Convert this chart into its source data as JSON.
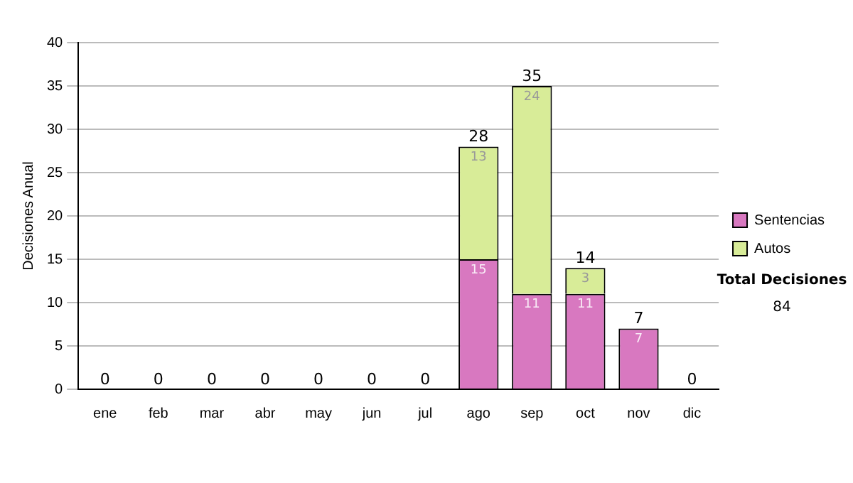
{
  "chart_data": {
    "type": "bar",
    "stacked": true,
    "ylabel": "Decisiones Anual",
    "categories": [
      "ene",
      "feb",
      "mar",
      "abr",
      "may",
      "jun",
      "jul",
      "ago",
      "sep",
      "oct",
      "nov",
      "dic"
    ],
    "series": [
      {
        "name": "Sentencias",
        "color": "#d878c0",
        "values": [
          0,
          0,
          0,
          0,
          0,
          0,
          0,
          15,
          11,
          11,
          7,
          0
        ],
        "value_labels": [
          null,
          null,
          null,
          null,
          null,
          null,
          null,
          "15",
          "11",
          "11",
          "7",
          null
        ]
      },
      {
        "name": "Autos",
        "color": "#d8ec98",
        "values": [
          0,
          0,
          0,
          0,
          0,
          0,
          0,
          13,
          24,
          3,
          0,
          0
        ],
        "value_labels": [
          null,
          null,
          null,
          null,
          null,
          null,
          null,
          "13",
          "24",
          "3",
          null,
          null
        ]
      }
    ],
    "totals": [
      "0",
      "0",
      "0",
      "0",
      "0",
      "0",
      "0",
      "28",
      "35",
      "14",
      "7",
      "0"
    ],
    "ylim": [
      0,
      40
    ],
    "yticks": [
      0,
      5,
      10,
      15,
      20,
      25,
      30,
      35,
      40
    ],
    "grid": "y",
    "legend": "right",
    "annotations": [
      "Total Decisiones",
      "84"
    ]
  }
}
